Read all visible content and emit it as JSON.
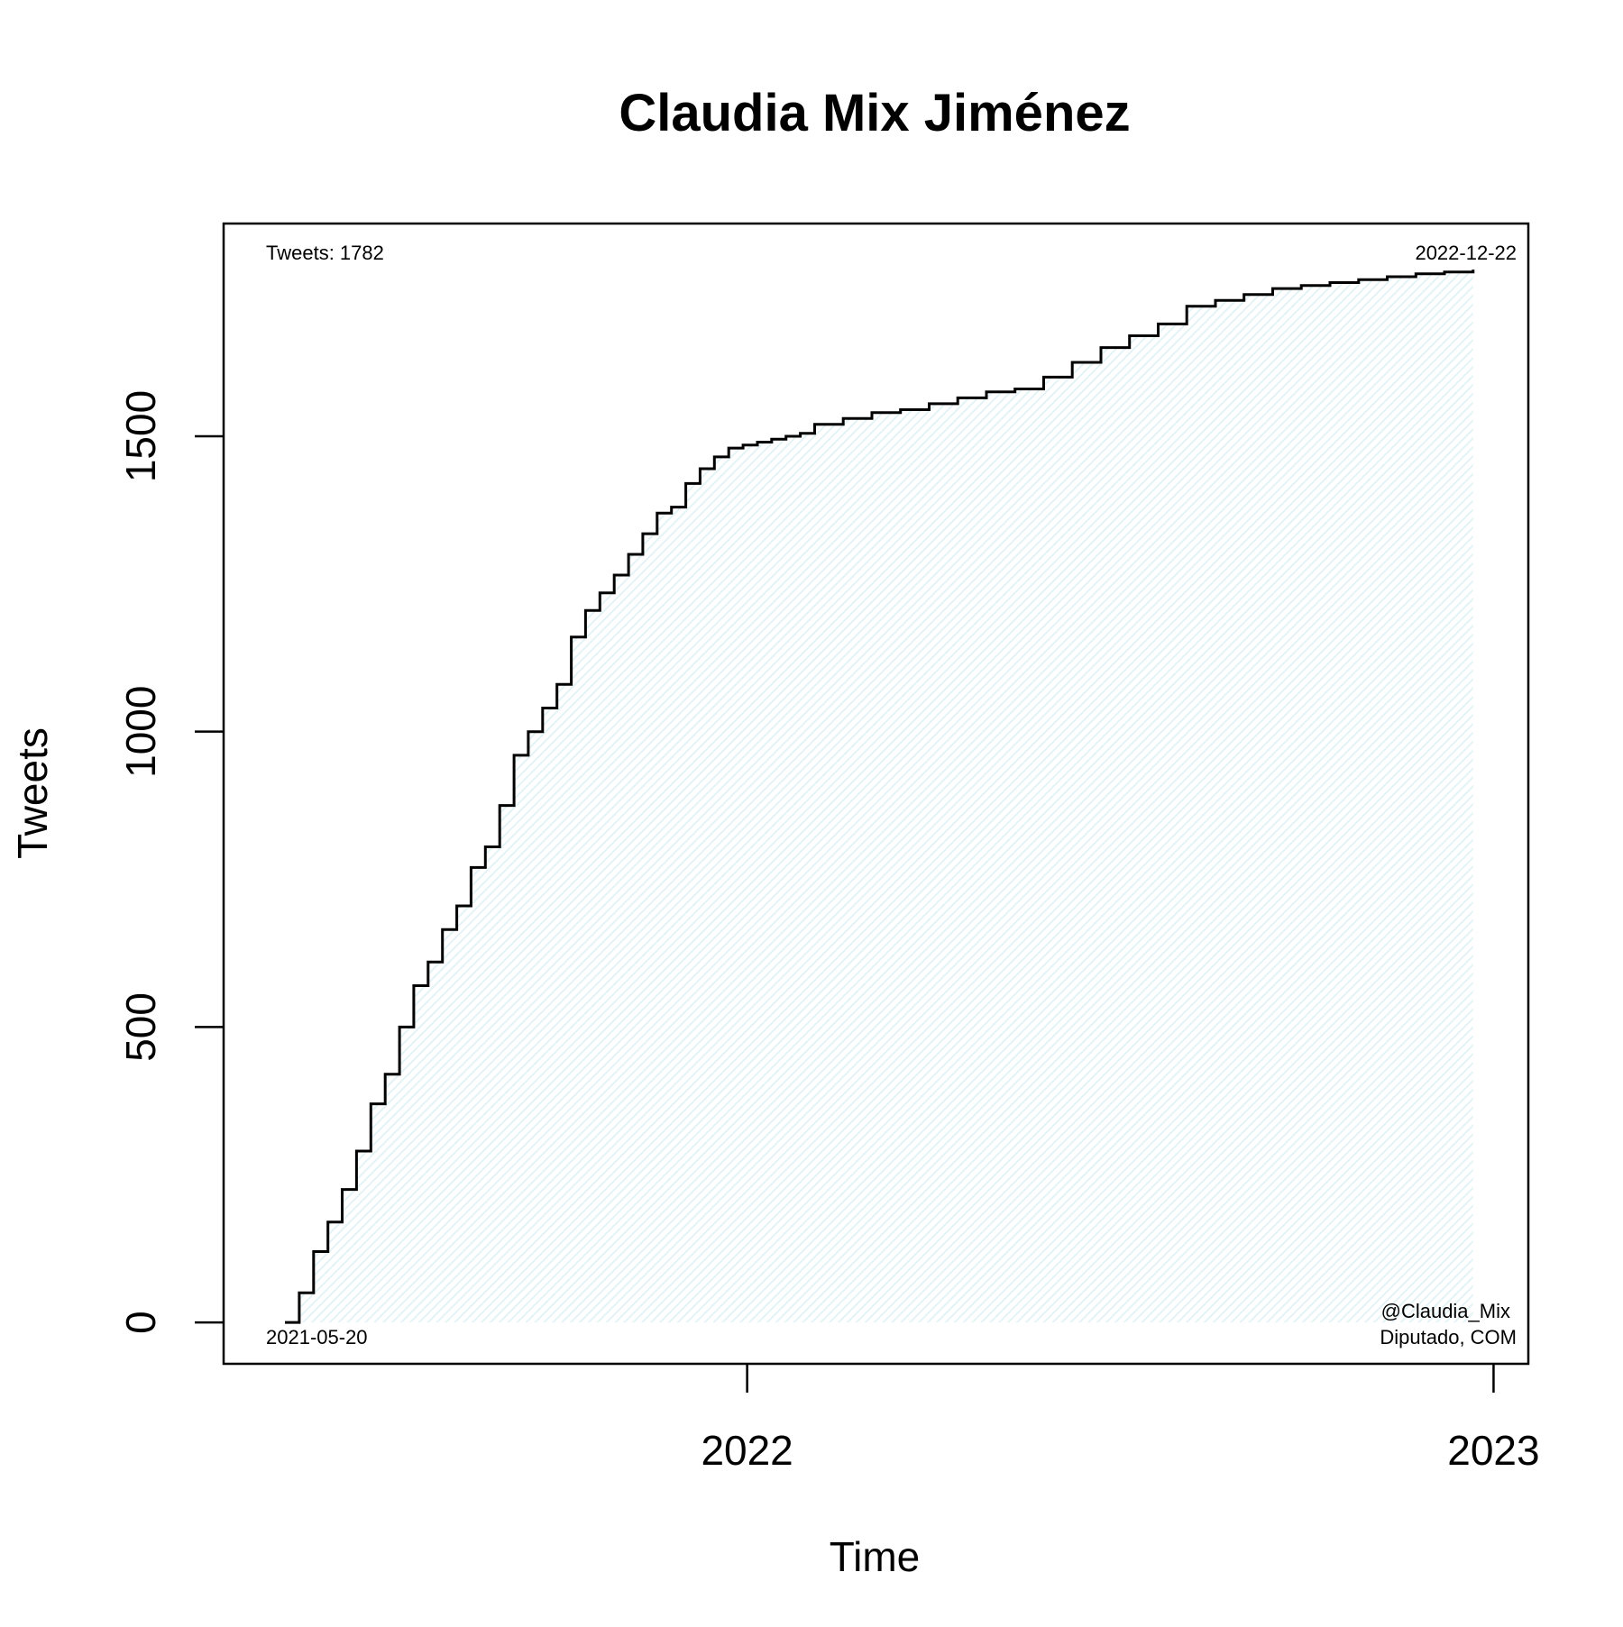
{
  "chart_data": {
    "type": "area",
    "title": "Claudia Mix Jiménez",
    "xlabel": "Time",
    "ylabel": "Tweets",
    "x_ticks": [
      "2022",
      "2023"
    ],
    "y_ticks": [
      0,
      500,
      1000,
      1500
    ],
    "xlim": [
      "2021-04-20",
      "2023-01-18"
    ],
    "ylim": [
      -70,
      1860
    ],
    "grid": false,
    "legend": "none",
    "annotations": {
      "total": "Tweets: 1782",
      "end_date": "2022-12-22",
      "start_date": "2021-05-20",
      "handle": "@Claudia_Mix",
      "role": "Diputado, COM"
    },
    "colors": {
      "fill": "#e4f3f5",
      "line": "#000000"
    },
    "series": [
      {
        "x": [
          "2021-05-20",
          "2021-05-27",
          "2021-06-03",
          "2021-06-10",
          "2021-06-17",
          "2021-06-24",
          "2021-07-01",
          "2021-07-08",
          "2021-07-15",
          "2021-07-22",
          "2021-07-29",
          "2021-08-05",
          "2021-08-12",
          "2021-08-19",
          "2021-08-26",
          "2021-09-02",
          "2021-09-09",
          "2021-09-16",
          "2021-09-23",
          "2021-09-30",
          "2021-10-07",
          "2021-10-14",
          "2021-10-21",
          "2021-10-28",
          "2021-11-04",
          "2021-11-11",
          "2021-11-18",
          "2021-11-25",
          "2021-12-02",
          "2021-12-09",
          "2021-12-16",
          "2021-12-23",
          "2021-12-30",
          "2022-01-06",
          "2022-01-13",
          "2022-01-20",
          "2022-01-27",
          "2022-02-03",
          "2022-02-17",
          "2022-03-03",
          "2022-03-17",
          "2022-03-31",
          "2022-04-14",
          "2022-04-28",
          "2022-05-12",
          "2022-05-26",
          "2022-06-09",
          "2022-06-23",
          "2022-07-07",
          "2022-07-21",
          "2022-08-04",
          "2022-08-18",
          "2022-09-01",
          "2022-09-15",
          "2022-09-29",
          "2022-10-13",
          "2022-10-27",
          "2022-11-10",
          "2022-11-24",
          "2022-12-08",
          "2022-12-22"
        ],
        "y": [
          0,
          50,
          120,
          170,
          225,
          290,
          370,
          420,
          500,
          570,
          610,
          665,
          705,
          770,
          805,
          875,
          960,
          1000,
          1040,
          1080,
          1160,
          1205,
          1235,
          1265,
          1300,
          1335,
          1370,
          1380,
          1420,
          1445,
          1465,
          1480,
          1485,
          1490,
          1495,
          1500,
          1505,
          1520,
          1530,
          1540,
          1545,
          1555,
          1565,
          1575,
          1580,
          1600,
          1625,
          1650,
          1670,
          1690,
          1720,
          1730,
          1740,
          1750,
          1755,
          1760,
          1765,
          1770,
          1775,
          1778,
          1782
        ]
      }
    ]
  }
}
